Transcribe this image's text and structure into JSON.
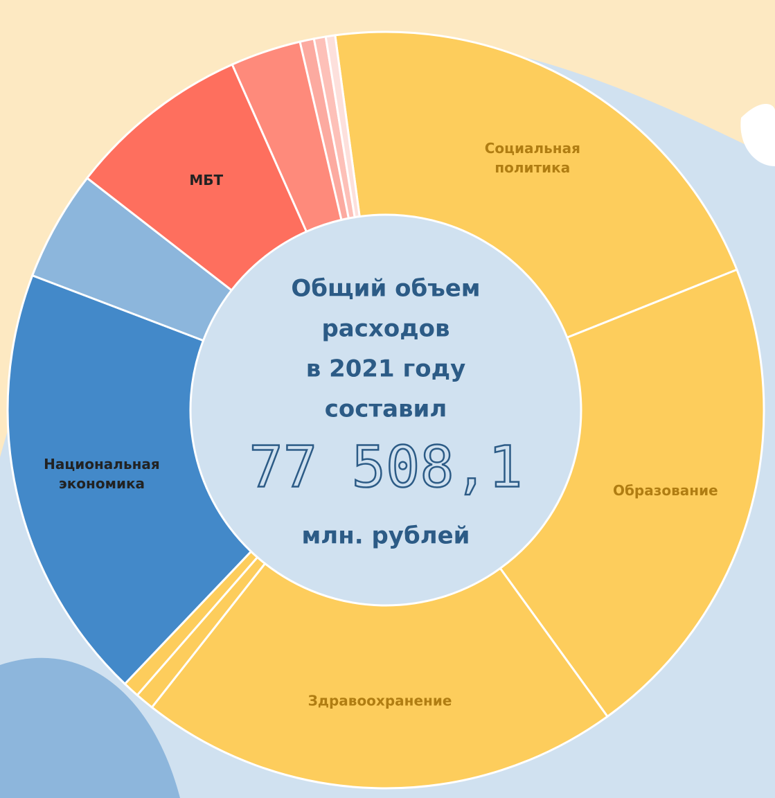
{
  "chart_data": {
    "type": "pie",
    "categories": [
      "Социальная политика",
      "Образование",
      "Здравоохранение",
      null,
      null,
      "Национальная экономика",
      null,
      "МБТ",
      null,
      null,
      null,
      null
    ],
    "values": [
      21,
      21,
      20.5,
      0.8,
      0.7,
      18.6,
      4.7,
      7.8,
      3,
      0.6,
      0.5,
      0.4
    ],
    "colors": [
      "#fdcd5c",
      "#fdcd5c",
      "#fdcd5c",
      "#fdcd5c",
      "#fdcd5c",
      "#4389c9",
      "#8cb6dc",
      "#fe6f5e",
      "#fe8a7b",
      "#fcaaa0",
      "#fdc0b8",
      "#fde0dc"
    ],
    "center_text": [
      "Общий объем",
      "расходов",
      "в 2021 году",
      "составил"
    ],
    "total": "77 508,1",
    "unit": "млн. рублей"
  }
}
